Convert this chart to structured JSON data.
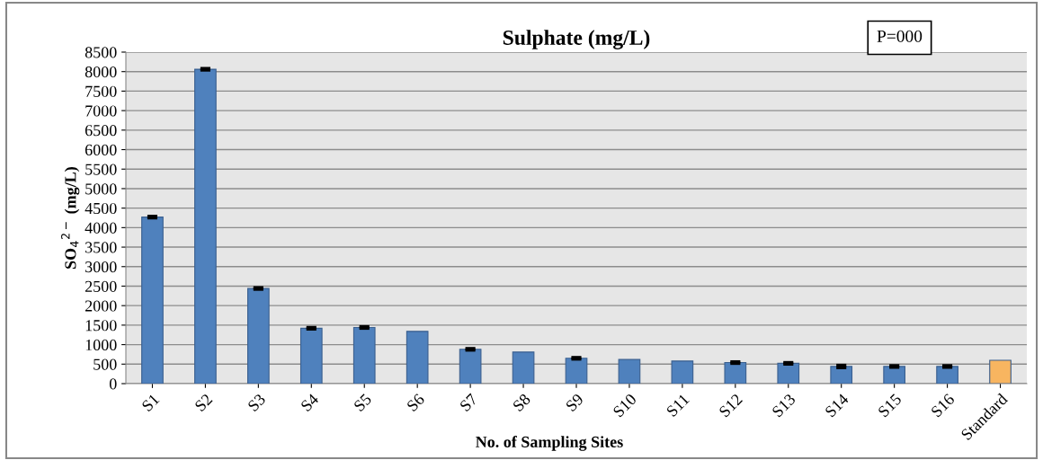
{
  "chart_data": {
    "type": "bar",
    "title": "Sulphate (mg/L)",
    "xlabel": "No. of Sampling Sites",
    "ylabel": "SO$_{4}$$^{2−}$ (mg/L)",
    "categories": [
      "S1",
      "S2",
      "S3",
      "S4",
      "S5",
      "S6",
      "S7",
      "S8",
      "S9",
      "S10",
      "S11",
      "S12",
      "S13",
      "S14",
      "S15",
      "S16",
      "Standard"
    ],
    "values": [
      4270,
      8060,
      2440,
      1420,
      1440,
      1340,
      880,
      810,
      650,
      620,
      580,
      540,
      520,
      440,
      440,
      440,
      600
    ],
    "errors": [
      20,
      20,
      20,
      20,
      20,
      null,
      20,
      null,
      20,
      null,
      null,
      20,
      20,
      30,
      20,
      20,
      null
    ],
    "colors": [
      "#4f81bd",
      "#4f81bd",
      "#4f81bd",
      "#4f81bd",
      "#4f81bd",
      "#4f81bd",
      "#4f81bd",
      "#4f81bd",
      "#4f81bd",
      "#4f81bd",
      "#4f81bd",
      "#4f81bd",
      "#4f81bd",
      "#4f81bd",
      "#4f81bd",
      "#4f81bd",
      "#f8b560"
    ],
    "ylim": [
      0,
      8500
    ],
    "yticks": [
      0,
      500,
      1000,
      1500,
      2000,
      2500,
      3000,
      3500,
      4000,
      4500,
      5000,
      5500,
      6000,
      6500,
      7000,
      7500,
      8000,
      8500
    ],
    "grid": "y",
    "legend": false,
    "annotations": [
      "P=000"
    ]
  }
}
